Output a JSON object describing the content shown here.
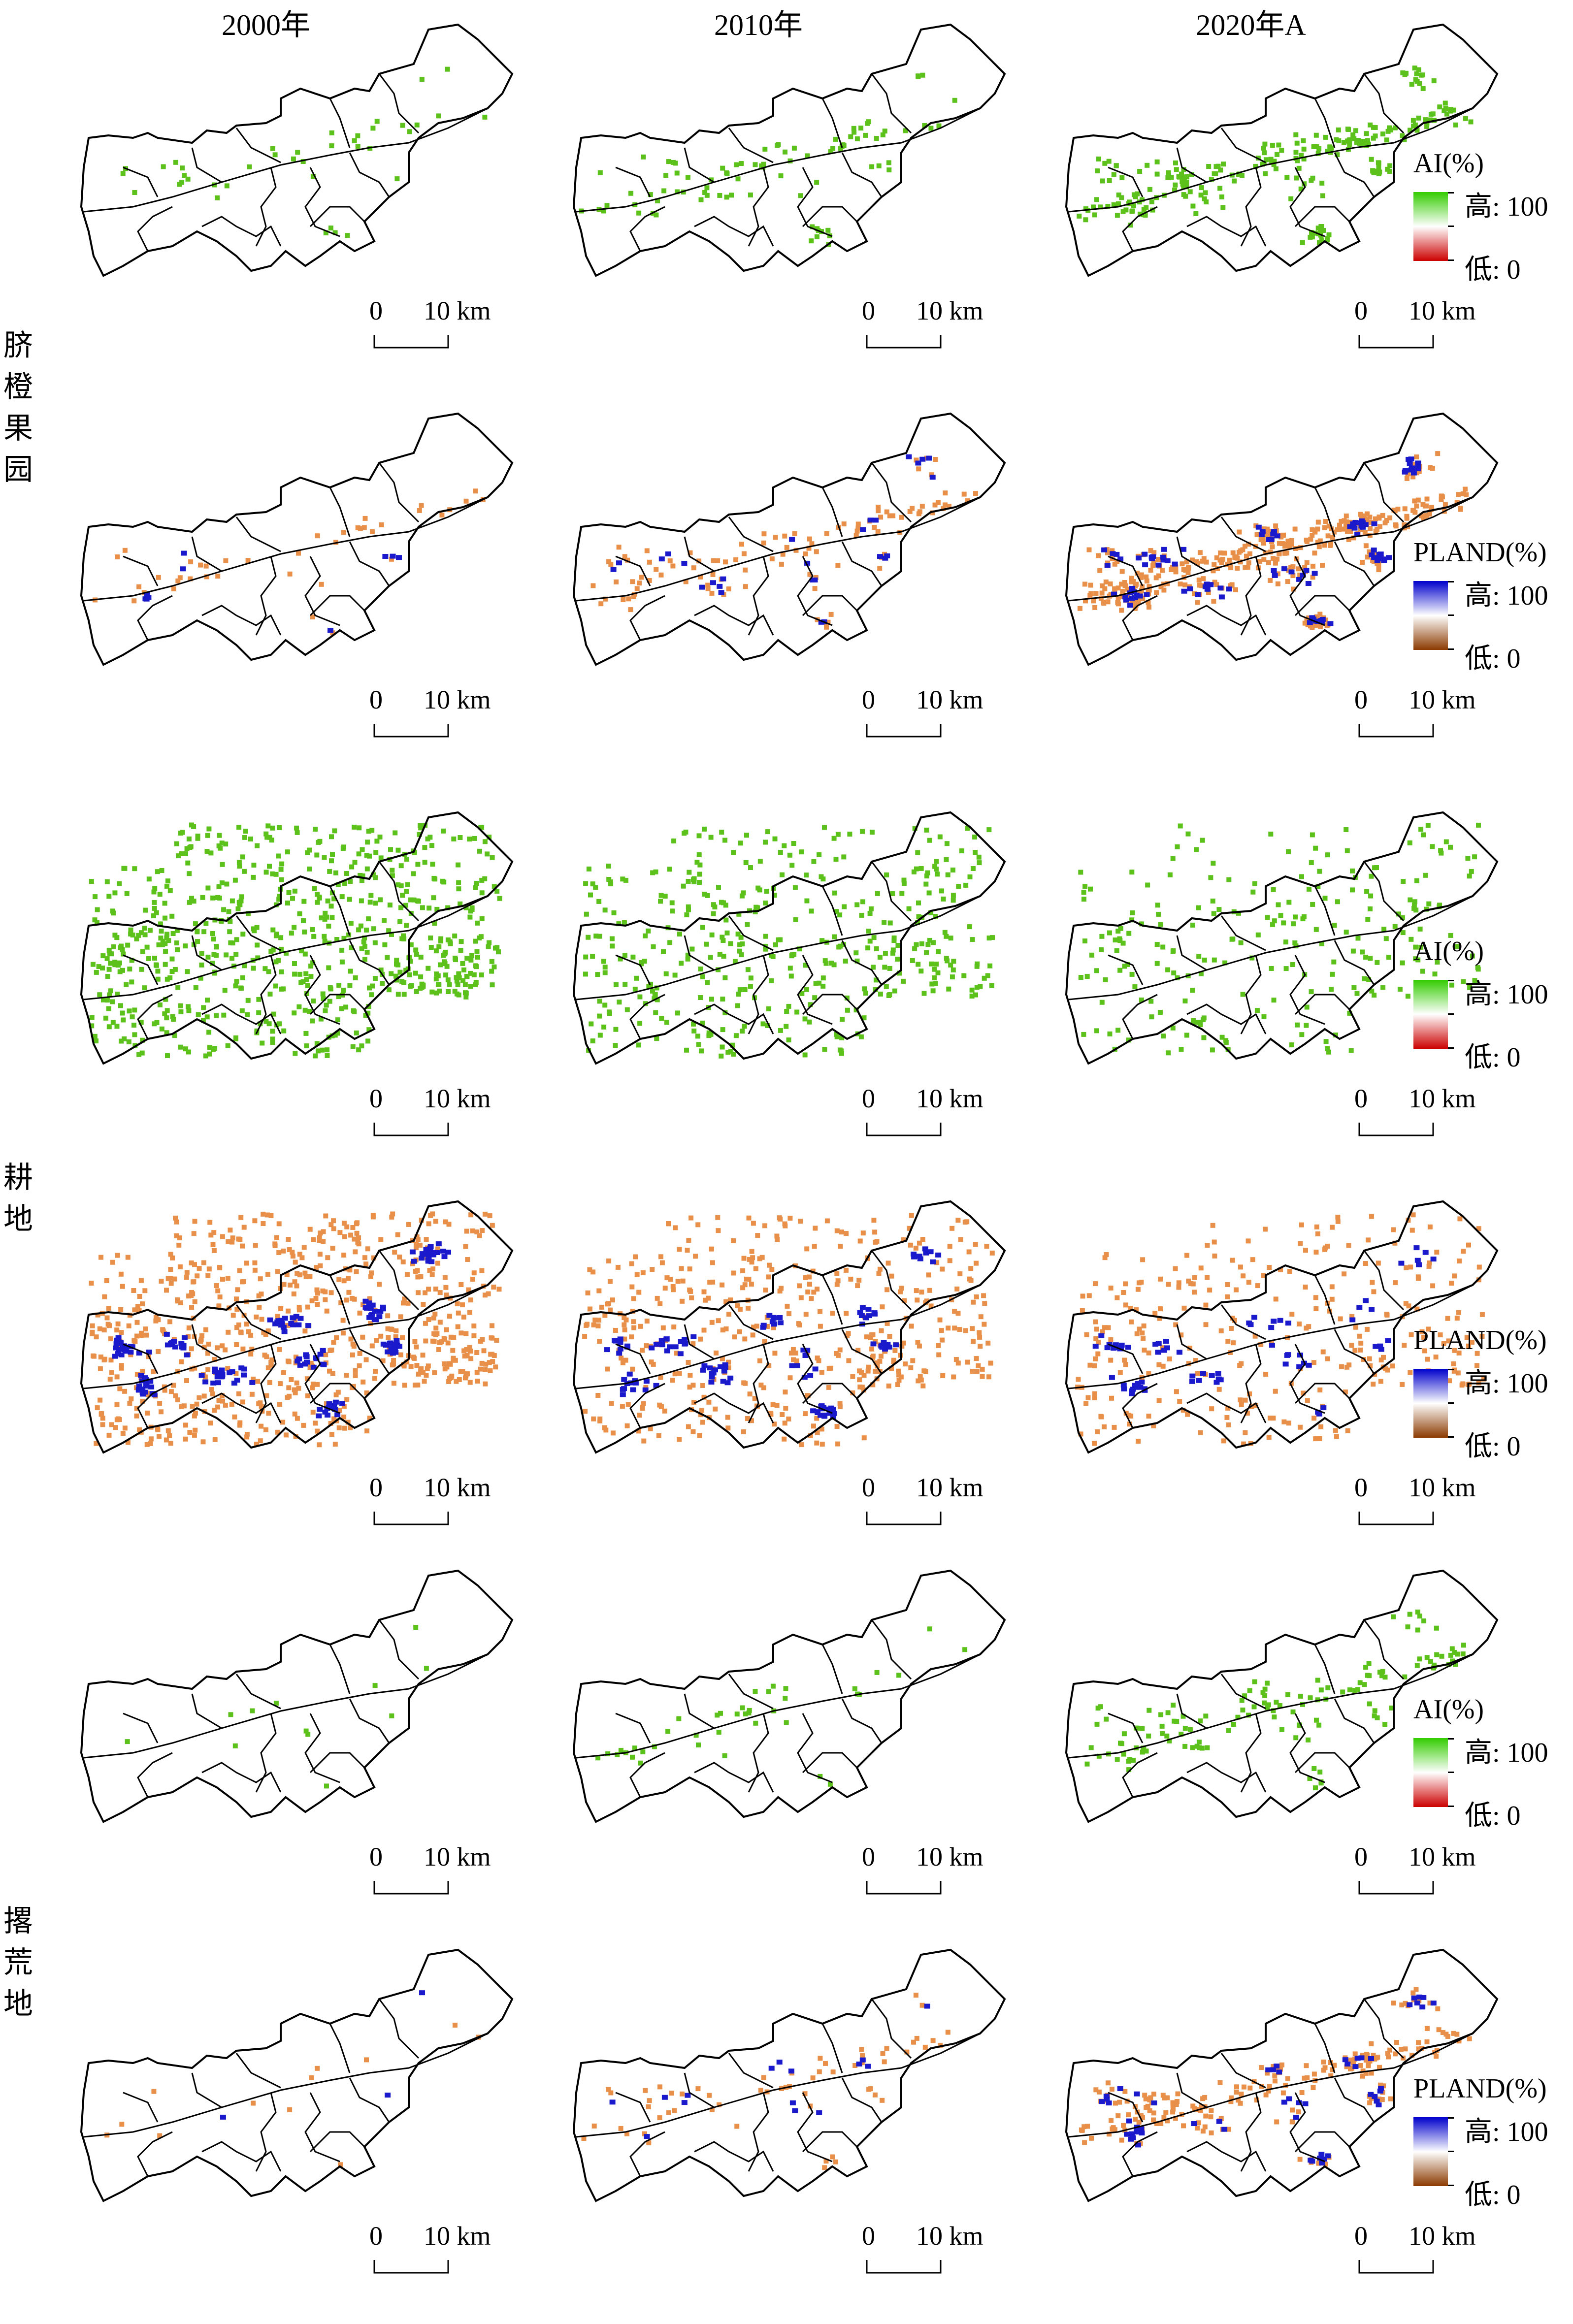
{
  "figure": {
    "columns": [
      {
        "title": "2000年"
      },
      {
        "title": "2010年"
      },
      {
        "title": "2020年A"
      }
    ],
    "row_groups": [
      {
        "label": "脐橙果园"
      },
      {
        "label": "耕地"
      },
      {
        "label": "撂荒地"
      }
    ],
    "scale_bar": {
      "zero": "0",
      "distance": "10 km"
    },
    "legend_ai": {
      "title": "AI(%)",
      "high": "高: 100",
      "low": "低: 0",
      "color_high": "#33cc00",
      "color_mid": "#ffffff",
      "color_low": "#cc0000"
    },
    "legend_pland": {
      "title": "PLAND(%)",
      "high": "高: 100",
      "low": "低: 0",
      "color_high": "#0000cc",
      "color_mid": "#ffffff",
      "color_low": "#8b3a00"
    },
    "colors": {
      "outline": "#000000",
      "ai_point": "#5cc21b",
      "pland_point": "#e8904a",
      "pland_core": "#1a1acc"
    }
  }
}
